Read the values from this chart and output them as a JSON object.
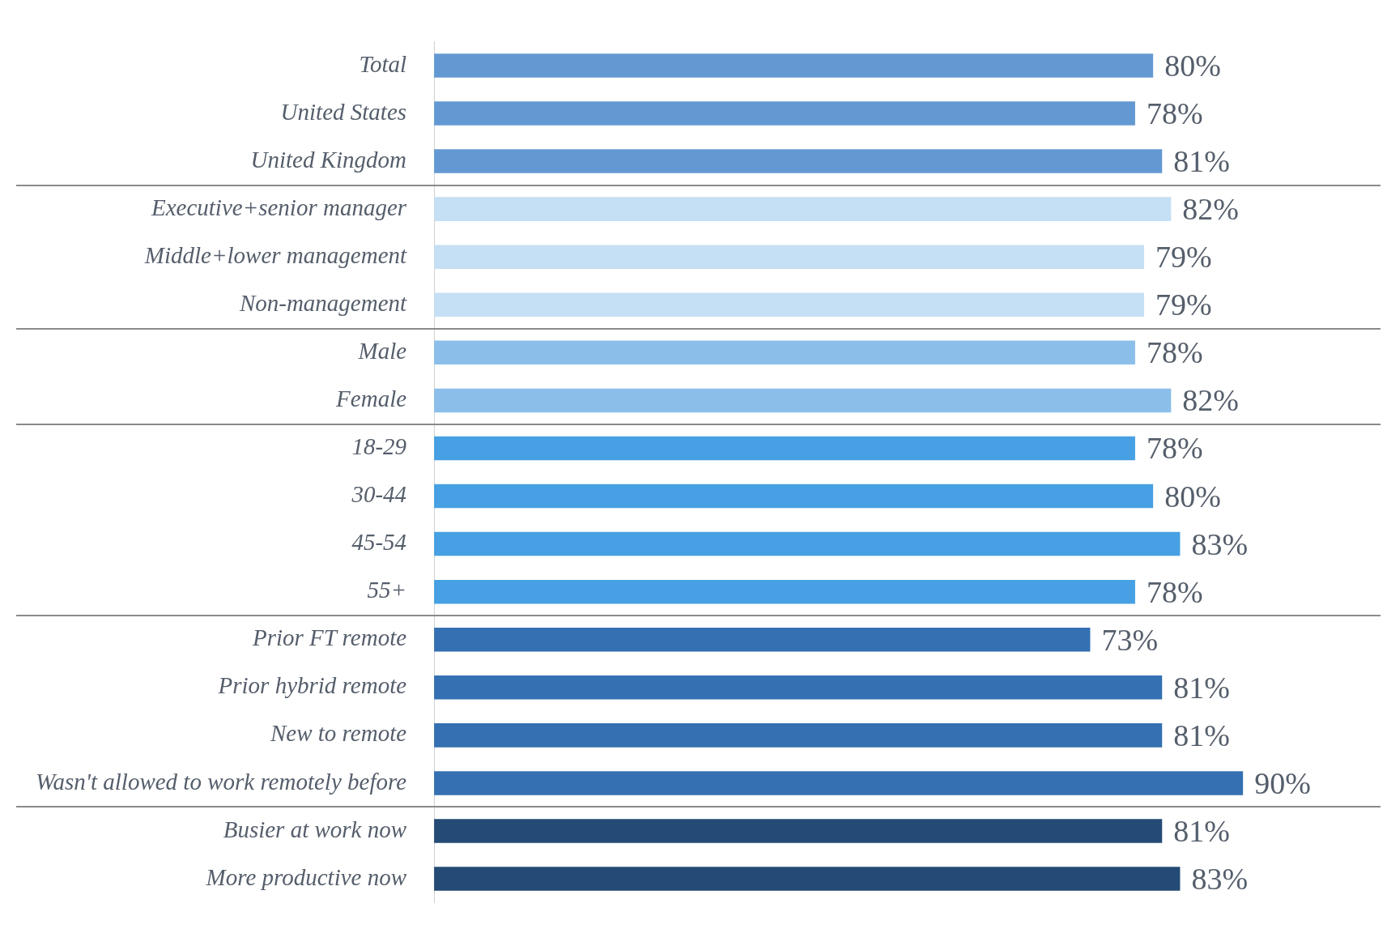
{
  "chart_data": {
    "type": "bar",
    "orientation": "horizontal",
    "value_labels": [
      "80%",
      "78%",
      "81%",
      "82%",
      "79%",
      "79%",
      "78%",
      "82%",
      "78%",
      "80%",
      "83%",
      "78%",
      "73%",
      "81%",
      "81%",
      "90%",
      "81%",
      "83%"
    ],
    "categories": [
      "Total",
      "United States",
      "United Kingdom",
      "Executive+senior manager",
      "Middle+lower management",
      "Non-management",
      "Male",
      "Female",
      "18-29",
      "30-44",
      "45-54",
      "55+",
      "Prior FT remote",
      "Prior hybrid remote",
      "New to remote",
      "Wasn't allowed to work remotely before",
      "Busier at work now",
      "More productive now"
    ],
    "values": [
      80,
      78,
      81,
      82,
      79,
      79,
      78,
      82,
      78,
      80,
      83,
      78,
      73,
      81,
      81,
      90,
      81,
      83
    ],
    "colors": [
      "#6399d2",
      "#6399d2",
      "#6399d2",
      "#c5dff4",
      "#c5dff4",
      "#c5dff4",
      "#8bbfea",
      "#8bbfea",
      "#47a0e3",
      "#47a0e3",
      "#47a0e3",
      "#47a0e3",
      "#3470b2",
      "#3470b2",
      "#3470b2",
      "#3470b2",
      "#234b75",
      "#234b75"
    ]
  }
}
